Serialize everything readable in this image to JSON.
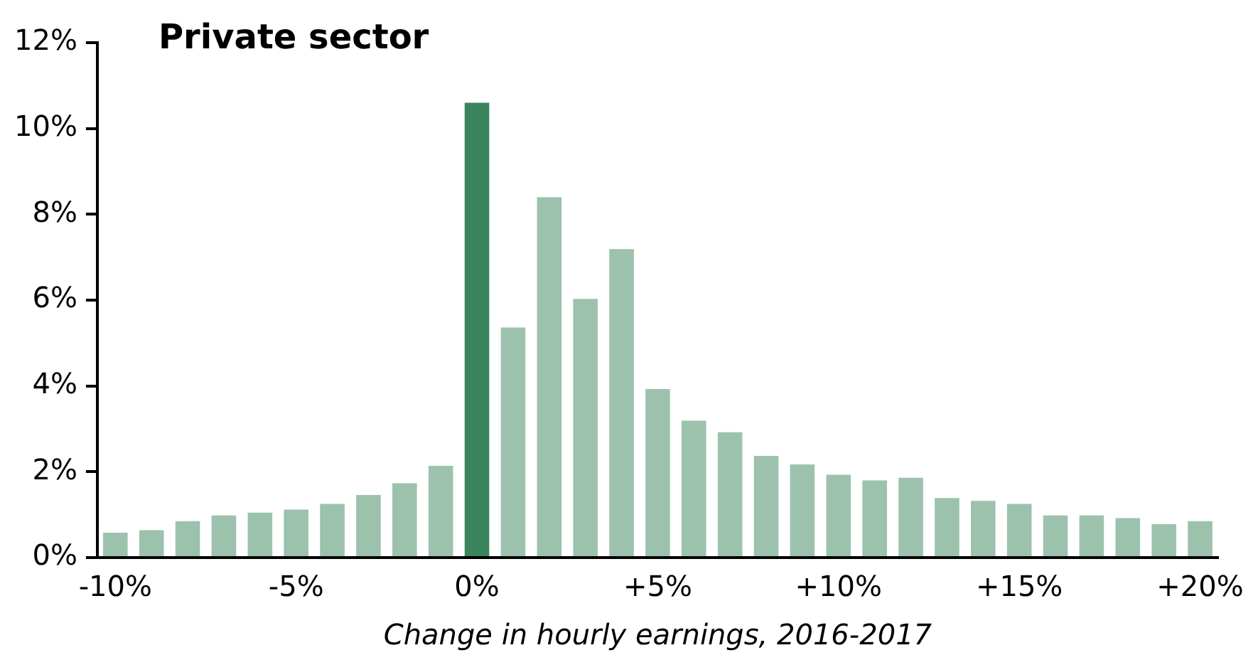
{
  "chart_data": {
    "type": "bar",
    "title": "Private sector",
    "xlabel": "Change in hourly earnings, 2016-2017",
    "categories": [
      "-10%",
      null,
      null,
      null,
      null,
      "-5%",
      null,
      null,
      null,
      null,
      "0%",
      null,
      null,
      null,
      null,
      "+5%",
      null,
      null,
      null,
      null,
      "+10%",
      null,
      null,
      null,
      null,
      "+15%",
      null,
      null,
      null,
      null,
      "+20%"
    ],
    "values": [
      0.58,
      0.64,
      0.85,
      0.98,
      1.05,
      1.12,
      1.25,
      1.46,
      1.73,
      2.14,
      10.6,
      5.36,
      8.4,
      6.03,
      7.19,
      3.93,
      3.19,
      2.92,
      2.37,
      2.17,
      1.93,
      1.8,
      1.86,
      1.39,
      1.32,
      1.25,
      0.98,
      0.98,
      0.92,
      0.78,
      0.85
    ],
    "colors": [
      "#9cc2ae",
      "#9cc2ae",
      "#9cc2ae",
      "#9cc2ae",
      "#9cc2ae",
      "#9cc2ae",
      "#9cc2ae",
      "#9cc2ae",
      "#9cc2ae",
      "#9cc2ae",
      "#3a855e",
      "#9cc2ae",
      "#9cc2ae",
      "#9cc2ae",
      "#9cc2ae",
      "#9cc2ae",
      "#9cc2ae",
      "#9cc2ae",
      "#9cc2ae",
      "#9cc2ae",
      "#9cc2ae",
      "#9cc2ae",
      "#9cc2ae",
      "#9cc2ae",
      "#9cc2ae",
      "#9cc2ae",
      "#9cc2ae",
      "#9cc2ae",
      "#9cc2ae",
      "#9cc2ae",
      "#9cc2ae"
    ],
    "ylim": [
      0,
      12
    ],
    "yticks": [
      {
        "value": 0,
        "label": "0%"
      },
      {
        "value": 2,
        "label": "2%"
      },
      {
        "value": 4,
        "label": "4%"
      },
      {
        "value": 6,
        "label": "6%"
      },
      {
        "value": 8,
        "label": "8%"
      },
      {
        "value": 10,
        "label": "10%"
      },
      {
        "value": 12,
        "label": "12%"
      }
    ],
    "grid": false,
    "legend": false
  }
}
